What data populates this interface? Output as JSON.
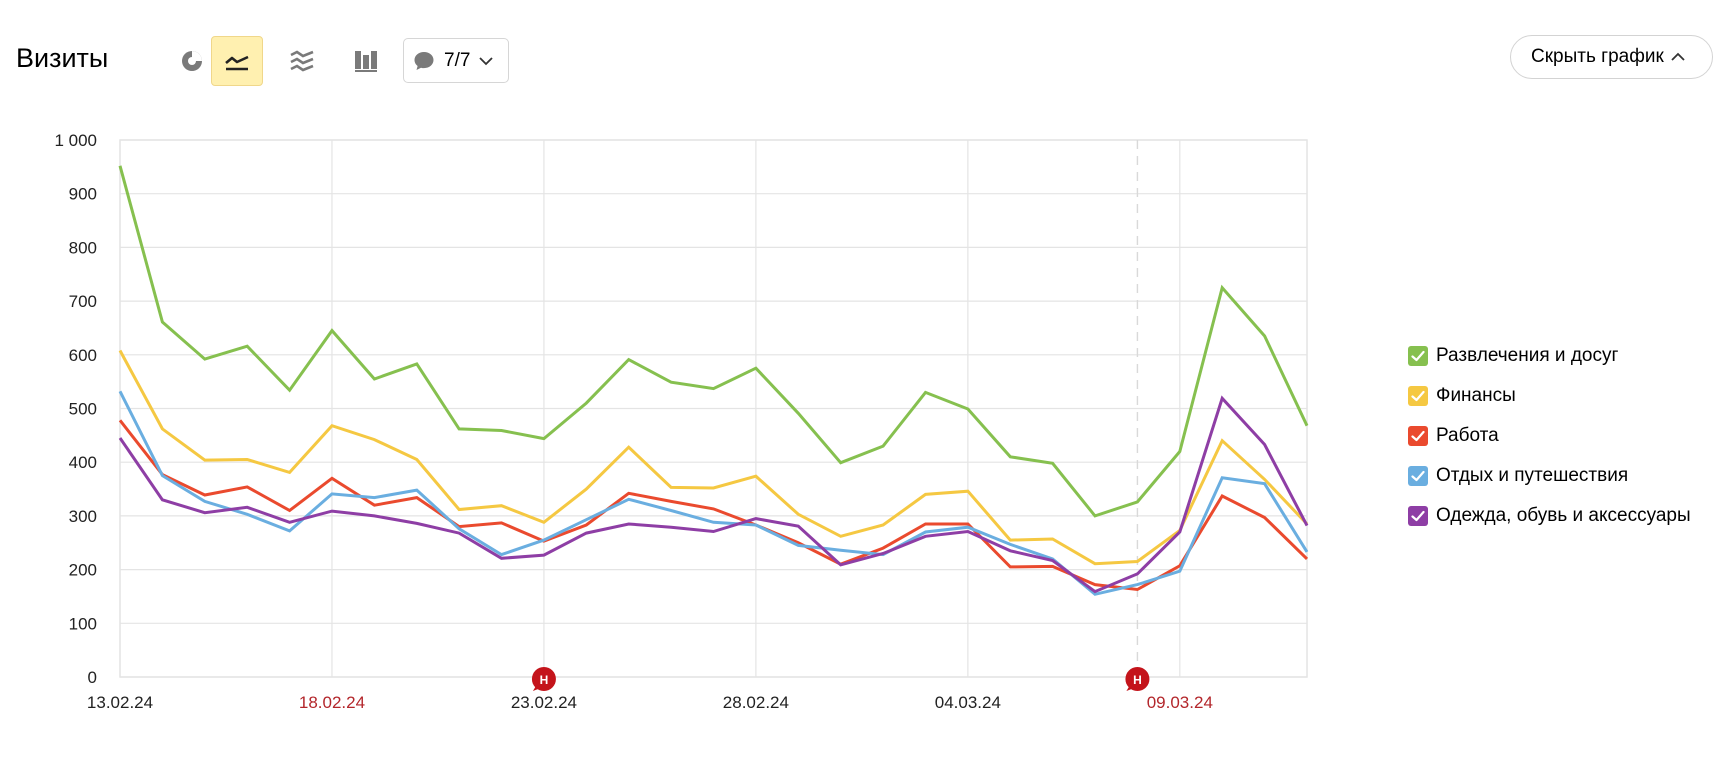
{
  "header": {
    "title": "Визиты",
    "comments_count": "7/7",
    "hide_chart_label": "Скрыть график"
  },
  "icons": {
    "pie": "pie-chart-icon",
    "line": "line-chart-icon",
    "area": "area-chart-icon",
    "bar": "bar-chart-icon",
    "comment": "comment-icon",
    "chevron_down": "chevron-down-icon",
    "chevron_up": "chevron-up-icon",
    "checkbox": "checkbox-checked-icon",
    "holiday": "holiday-marker-icon"
  },
  "chart_data": {
    "type": "line",
    "grid": true,
    "legend_position": "right",
    "ylim": [
      0,
      1000
    ],
    "yticks": [
      "0",
      "100",
      "200",
      "300",
      "400",
      "500",
      "600",
      "700",
      "800",
      "900",
      "1 000"
    ],
    "xticks": [
      {
        "label": "13.02.24",
        "index": 0,
        "highlight": false
      },
      {
        "label": "18.02.24",
        "index": 5,
        "highlight": true
      },
      {
        "label": "23.02.24",
        "index": 10,
        "highlight": false
      },
      {
        "label": "28.02.24",
        "index": 15,
        "highlight": false
      },
      {
        "label": "04.03.24",
        "index": 20,
        "highlight": false
      },
      {
        "label": "09.03.24",
        "index": 25,
        "highlight": true
      }
    ],
    "x": [
      "13.02.24",
      "14.02.24",
      "15.02.24",
      "16.02.24",
      "17.02.24",
      "18.02.24",
      "19.02.24",
      "20.02.24",
      "21.02.24",
      "22.02.24",
      "23.02.24",
      "24.02.24",
      "25.02.24",
      "26.02.24",
      "27.02.24",
      "28.02.24",
      "29.02.24",
      "01.03.24",
      "02.03.24",
      "03.03.24",
      "04.03.24",
      "05.03.24",
      "06.03.24",
      "07.03.24",
      "08.03.24",
      "09.03.24",
      "10.03.24",
      "11.03.24",
      "12.03.24"
    ],
    "holiday_markers": [
      {
        "label": "Н",
        "date": "23.02.24"
      },
      {
        "label": "Н",
        "date": "08.03.24"
      }
    ],
    "series": [
      {
        "name": "Развлечения и досуг",
        "color": "#86c04f",
        "values": [
          952,
          661,
          592,
          616,
          534,
          645,
          555,
          583,
          462,
          459,
          444,
          510,
          591,
          549,
          537,
          575,
          491,
          399,
          430,
          530,
          499,
          410,
          398,
          300,
          326,
          420,
          725,
          635,
          468
        ]
      },
      {
        "name": "Финансы",
        "color": "#f5c842",
        "values": [
          608,
          462,
          404,
          405,
          381,
          468,
          442,
          405,
          312,
          319,
          288,
          350,
          428,
          353,
          352,
          374,
          303,
          262,
          283,
          340,
          346,
          255,
          257,
          211,
          215,
          273,
          440,
          368,
          285
        ]
      },
      {
        "name": "Работа",
        "color": "#ea4a2e",
        "values": [
          478,
          377,
          339,
          354,
          310,
          370,
          320,
          334,
          280,
          287,
          253,
          283,
          342,
          327,
          313,
          283,
          250,
          210,
          240,
          285,
          285,
          205,
          206,
          172,
          163,
          207,
          337,
          297,
          220
        ]
      },
      {
        "name": "Отдых и путешествия",
        "color": "#6aaee0",
        "values": [
          532,
          375,
          327,
          303,
          272,
          341,
          334,
          348,
          276,
          228,
          255,
          293,
          331,
          310,
          288,
          283,
          245,
          236,
          228,
          270,
          279,
          247,
          220,
          154,
          172,
          197,
          371,
          360,
          233
        ]
      },
      {
        "name": "Одежда, обувь и аксессуары",
        "color": "#8e3ea5",
        "values": [
          445,
          330,
          306,
          316,
          288,
          309,
          300,
          286,
          268,
          221,
          227,
          268,
          285,
          279,
          271,
          295,
          281,
          209,
          230,
          262,
          271,
          235,
          217,
          159,
          192,
          270,
          519,
          433,
          282
        ]
      }
    ]
  }
}
